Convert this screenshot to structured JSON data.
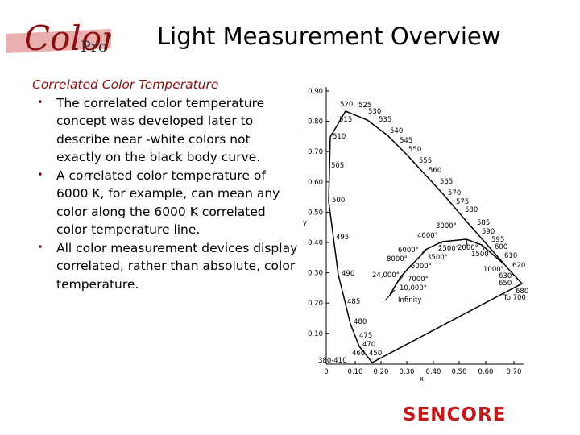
{
  "header": {
    "title": "Light Measurement Overview",
    "logo": {
      "main": "Color",
      "sub": "Pro"
    }
  },
  "body": {
    "heading": "Correlated Color Temperature",
    "bullets": [
      "The correlated color temperature concept was developed later to describe near -white colors not exactly on the black body curve.",
      "A correlated color temperature of 6000 K, for example, can mean any color along the 6000 K correlated color temperature line.",
      "All color measurement devices display correlated, rather than absolute, color temperature."
    ]
  },
  "figure": {
    "y_label": "y",
    "x_label": "x",
    "yticks": [
      "0.90",
      "0.80",
      "0.70",
      "0.60",
      "0.50",
      "0.40",
      "0.30",
      "0.20",
      "0.10"
    ],
    "xticks": [
      "0",
      "0.10",
      "0.20",
      "0.30",
      "0.40",
      "0.50",
      "0.60",
      "0.70"
    ],
    "wavelengths": [
      "380-410",
      "450",
      "460",
      "470",
      "475",
      "480",
      "485",
      "490",
      "495",
      "500",
      "505",
      "510",
      "515",
      "520",
      "525",
      "530",
      "535",
      "540",
      "545",
      "550",
      "555",
      "560",
      "565",
      "570",
      "575",
      "580",
      "585",
      "590",
      "595",
      "600",
      "610",
      "620",
      "630",
      "650",
      "680",
      "To 700"
    ],
    "temperatures": [
      "3000°",
      "4000°",
      "2500°",
      "2000°",
      "1500°",
      "1000°",
      "6000°",
      "5000°",
      "8000°",
      "3500°",
      "24,000°",
      "7000°",
      "10,000°",
      "Infinity"
    ]
  },
  "footer": {
    "logo": "SENCORE"
  }
}
